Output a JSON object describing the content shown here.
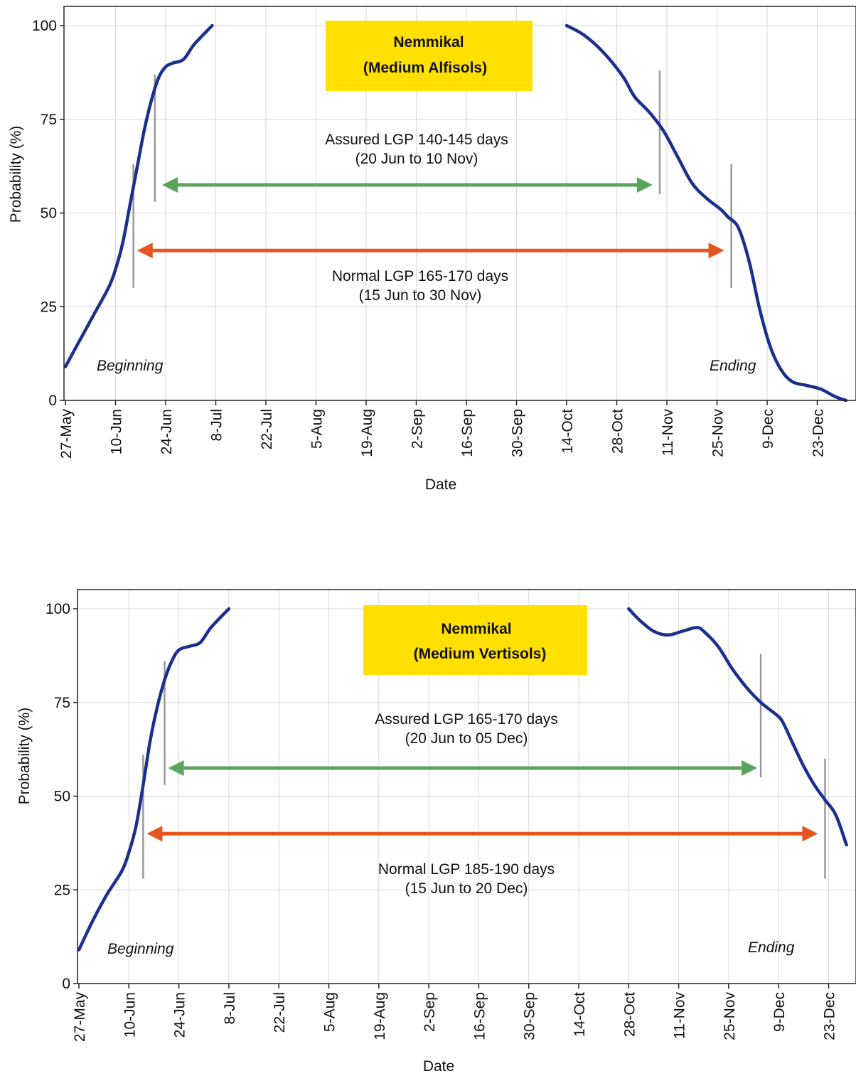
{
  "chart_data": [
    {
      "type": "line",
      "title": "Nemmikal",
      "subtitle": "(Medium Alfisols)",
      "xlabel": "Date",
      "ylabel": "Probability (%)",
      "x_ticks": [
        "27-May",
        "10-Jun",
        "24-Jun",
        "8-Jul",
        "22-Jul",
        "5-Aug",
        "19-Aug",
        "2-Sep",
        "16-Sep",
        "30-Sep",
        "14-Oct",
        "28-Oct",
        "11-Nov",
        "25-Nov",
        "9-Dec",
        "23-Dec"
      ],
      "y_ticks": [
        0,
        25,
        50,
        75,
        100
      ],
      "ylim": [
        0,
        100
      ],
      "xlim": [
        "27-May",
        "2-Jan"
      ],
      "grid": true,
      "series": [
        {
          "name": "Beginning",
          "points": [
            [
              "27-May",
              9
            ],
            [
              "31-May",
              16
            ],
            [
              "4-Jun",
              23
            ],
            [
              "8-Jun",
              30
            ],
            [
              "10-Jun",
              35
            ],
            [
              "12-Jun",
              42
            ],
            [
              "14-Jun",
              52
            ],
            [
              "16-Jun",
              62
            ],
            [
              "18-Jun",
              72
            ],
            [
              "20-Jun",
              80
            ],
            [
              "22-Jun",
              86
            ],
            [
              "24-Jun",
              89
            ],
            [
              "26-Jun",
              90
            ],
            [
              "29-Jun",
              91
            ],
            [
              "2-Jul",
              95
            ],
            [
              "7-Jul",
              100
            ]
          ]
        },
        {
          "name": "Ending",
          "points": [
            [
              "14-Oct",
              100
            ],
            [
              "18-Oct",
              98
            ],
            [
              "22-Oct",
              95
            ],
            [
              "26-Oct",
              91
            ],
            [
              "30-Oct",
              86
            ],
            [
              "2-Nov",
              81
            ],
            [
              "6-Nov",
              77
            ],
            [
              "10-Nov",
              72
            ],
            [
              "14-Nov",
              65
            ],
            [
              "18-Nov",
              58
            ],
            [
              "22-Nov",
              54
            ],
            [
              "26-Nov",
              51
            ],
            [
              "28-Nov",
              49
            ],
            [
              "1-Dec",
              46
            ],
            [
              "4-Dec",
              37
            ],
            [
              "7-Dec",
              24
            ],
            [
              "10-Dec",
              14
            ],
            [
              "13-Dec",
              8
            ],
            [
              "16-Dec",
              5
            ],
            [
              "20-Dec",
              4
            ],
            [
              "24-Dec",
              3
            ],
            [
              "28-Dec",
              1
            ],
            [
              "31-Dec",
              0
            ]
          ]
        }
      ],
      "markers": [
        {
          "x": "15-Jun",
          "ymin": 30,
          "ymax": 63
        },
        {
          "x": "21-Jun",
          "ymin": 53,
          "ymax": 87
        },
        {
          "x": "9-Nov",
          "ymin": 55,
          "ymax": 88
        },
        {
          "x": "29-Nov",
          "ymin": 30,
          "ymax": 63
        }
      ],
      "arrows": [
        {
          "label": "Assured LGP 140-145 days",
          "sublabel": "(20 Jun to 10 Nov)",
          "color": "#5aa55c",
          "x_from": "23-Jun",
          "x_to": "7-Nov",
          "y": 57.5
        },
        {
          "label": "Normal LGP 165-170 days",
          "sublabel": "(15 Jun to 30 Nov)",
          "color": "#e8541f",
          "x_from": "16-Jun",
          "x_to": "27-Nov",
          "y": 40
        }
      ],
      "annotations": [
        "Beginning",
        "Ending"
      ]
    },
    {
      "type": "line",
      "title": "Nemmikal",
      "subtitle": "(Medium Vertisols)",
      "xlabel": "Date",
      "ylabel": "Probability (%)",
      "x_ticks": [
        "27-May",
        "10-Jun",
        "24-Jun",
        "8-Jul",
        "22-Jul",
        "5-Aug",
        "19-Aug",
        "2-Sep",
        "16-Sep",
        "30-Sep",
        "14-Oct",
        "28-Oct",
        "11-Nov",
        "25-Nov",
        "9-Dec",
        "23-Dec"
      ],
      "y_ticks": [
        0,
        25,
        50,
        75,
        100
      ],
      "ylim": [
        0,
        100
      ],
      "xlim": [
        "27-May",
        "28-Dec"
      ],
      "grid": true,
      "series": [
        {
          "name": "Beginning",
          "points": [
            [
              "27-May",
              9
            ],
            [
              "31-May",
              17
            ],
            [
              "4-Jun",
              24
            ],
            [
              "8-Jun",
              30
            ],
            [
              "10-Jun",
              35
            ],
            [
              "12-Jun",
              42
            ],
            [
              "14-Jun",
              53
            ],
            [
              "16-Jun",
              65
            ],
            [
              "18-Jun",
              74
            ],
            [
              "20-Jun",
              81
            ],
            [
              "22-Jun",
              86
            ],
            [
              "24-Jun",
              89
            ],
            [
              "27-Jun",
              90
            ],
            [
              "30-Jun",
              91
            ],
            [
              "3-Jul",
              95
            ],
            [
              "8-Jul",
              100
            ]
          ]
        },
        {
          "name": "Ending",
          "points": [
            [
              "28-Oct",
              100
            ],
            [
              "31-Oct",
              97
            ],
            [
              "4-Nov",
              94
            ],
            [
              "8-Nov",
              93
            ],
            [
              "12-Nov",
              94
            ],
            [
              "16-Nov",
              95
            ],
            [
              "18-Nov",
              94
            ],
            [
              "22-Nov",
              90
            ],
            [
              "26-Nov",
              84
            ],
            [
              "30-Nov",
              79
            ],
            [
              "4-Dec",
              75
            ],
            [
              "8-Dec",
              72
            ],
            [
              "10-Dec",
              70
            ],
            [
              "13-Dec",
              64
            ],
            [
              "16-Dec",
              58
            ],
            [
              "19-Dec",
              53
            ],
            [
              "22-Dec",
              49
            ],
            [
              "25-Dec",
              45
            ],
            [
              "28-Dec",
              37
            ]
          ]
        }
      ],
      "markers": [
        {
          "x": "14-Jun",
          "ymin": 28,
          "ymax": 61
        },
        {
          "x": "20-Jun",
          "ymin": 53,
          "ymax": 86
        },
        {
          "x": "4-Dec",
          "ymin": 55,
          "ymax": 88
        },
        {
          "x": "22-Dec",
          "ymin": 28,
          "ymax": 60
        }
      ],
      "arrows": [
        {
          "label": "Assured LGP 165-170 days",
          "sublabel": "(20 Jun to 05 Dec)",
          "color": "#5aa55c",
          "x_from": "21-Jun",
          "x_to": "3-Dec",
          "y": 57.5
        },
        {
          "label": "Normal LGP 185-190 days",
          "sublabel": "(15 Jun to 20 Dec)",
          "color": "#e8541f",
          "x_from": "15-Jun",
          "x_to": "20-Dec",
          "y": 40
        }
      ],
      "annotations": [
        "Beginning",
        "Ending"
      ]
    }
  ],
  "colors": {
    "curve": "#1b2f8c",
    "marker": "#999999",
    "grid": "#d9d9d9",
    "title_box": "#ffe000"
  }
}
